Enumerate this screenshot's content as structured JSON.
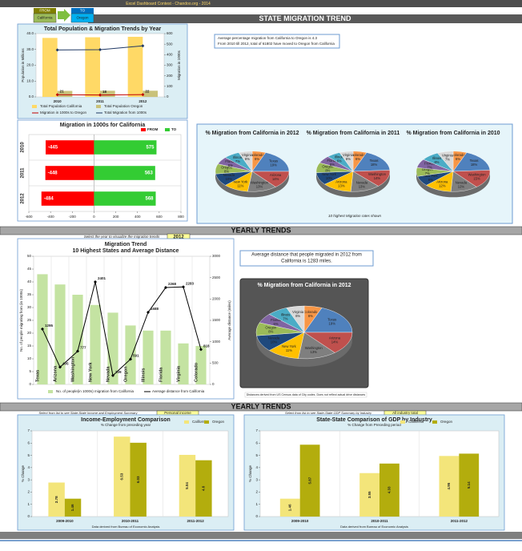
{
  "header": {
    "banner": "Excel Dashboard Contest - Chandoo.org - 2014",
    "from_label": "FROM",
    "from_value": "California",
    "to_label": "TO",
    "to_value": "Oregon",
    "title": "STATE MIGRATION TREND"
  },
  "notes": {
    "avg_percentage": "Average percentage migration from California to Oregon is 4.3",
    "total_moved": "From 2010 till 2012, total of 61802 have moved to Oregon from California",
    "pie_caption": "10 highest Migration rates shown",
    "year_prompt": "Select the year to visualize the migration trends",
    "year": "2012",
    "avg_distance_1": "Average distance that people migrated in 2012 from",
    "avg_distance_2": "California is 1283 miles.",
    "distance_source": "Distances derived from US Census data of City codes. Does not reflect actual drive distances",
    "income_prompt": "Select from list to see State-State Income and Employment Summary",
    "income_selection": "Personal income",
    "gdp_prompt": "Select from list to see State-State GDP Summary by Industry",
    "gdp_selection": "All industry total",
    "income_source": "Data derived from Bureau of Economic Analysis",
    "gdp_source": "Data derived from Bureau of Economic Analysis"
  },
  "sections": [
    "YEARLY TRENDS",
    "YEARLY TRENDS"
  ],
  "chart_data": [
    {
      "type": "combo",
      "title": "Total Population & Migration Trends by Year",
      "categories": [
        "2010",
        "2011",
        "2012"
      ],
      "ylabel": "Population in Millions",
      "y2label": "Migration in 1000s",
      "ylim": [
        0,
        40
      ],
      "yticks": [
        {
          "value": 0,
          "label": "0.0"
        },
        {
          "value": 10,
          "label": "10.0"
        },
        {
          "value": 20,
          "label": "20.0"
        },
        {
          "value": 30,
          "label": "30.0"
        },
        {
          "value": 40,
          "label": "40.0"
        }
      ],
      "y2lim": [
        0,
        600
      ],
      "y2ticks": [
        0,
        100,
        200,
        300,
        400,
        500,
        600
      ],
      "grid": false,
      "series": [
        {
          "name": "Total Population California",
          "kind": "bar",
          "color": "#ffd966",
          "values": [
            37.3,
            37.7,
            38.0
          ]
        },
        {
          "name": "Total Population Oregon",
          "kind": "bar",
          "color": "#c9c27a",
          "values": [
            3.8,
            3.9,
            3.9
          ]
        },
        {
          "name": "Migration in 1000s to Oregon",
          "kind": "line",
          "axis": "y2",
          "color": "#c00000",
          "values": [
            21,
            18,
            22
          ],
          "data_labels": true
        },
        {
          "name": "Total Migration from 1000s",
          "kind": "line",
          "axis": "y2",
          "color": "#1f3864",
          "values": [
            445,
            448,
            484
          ]
        }
      ]
    },
    {
      "type": "hbar",
      "title": "Migration in 1000s for California",
      "categories": [
        "2010",
        "2011",
        "2012"
      ],
      "xlim": [
        -600,
        800
      ],
      "xticks": [
        -600,
        -400,
        -200,
        0,
        200,
        400,
        600,
        800
      ],
      "series": [
        {
          "name": "FROM",
          "color": "#ff0000",
          "values": [
            -445,
            -448,
            -484
          ]
        },
        {
          "name": "TO",
          "color": "#33cc33",
          "values": [
            575,
            563,
            568
          ]
        }
      ]
    },
    {
      "type": "pie",
      "title": "% Migration from California in 2012",
      "categories": [
        "Colorado",
        "Texas",
        "Arizona",
        "Washington",
        "New York",
        "Nevada",
        "Oregon",
        "Florida",
        "Illinois",
        "Virginia"
      ],
      "values": [
        6,
        19,
        14,
        13,
        11,
        10,
        8,
        6,
        7,
        6
      ],
      "value_labels": [
        "6%",
        "19%",
        "14%",
        "13%",
        "11%",
        "10%",
        "8%",
        "6%",
        "7%",
        "6%"
      ],
      "colors": [
        "#f79646",
        "#4f81bd",
        "#c0504d",
        "#7f7f7f",
        "#ffc000",
        "#1f497d",
        "#9bbb59",
        "#8064a2",
        "#4bacc6",
        "#d9d9d9"
      ]
    },
    {
      "type": "pie",
      "title": "% Migration from California in 2011",
      "categories": [
        "Colorado",
        "Texas",
        "Washington",
        "Nevada",
        "Arizona",
        "New York",
        "Oregon",
        "Florida",
        "Illinois",
        "Virginia"
      ],
      "values": [
        6,
        18,
        14,
        13,
        13,
        10,
        8,
        6,
        6,
        6
      ],
      "value_labels": [
        "6%",
        "18%",
        "14%",
        "13%",
        "13%",
        "10%",
        "8%",
        "6%",
        "6%",
        "6%"
      ],
      "colors": [
        "#f79646",
        "#4f81bd",
        "#c0504d",
        "#7f7f7f",
        "#ffc000",
        "#1f497d",
        "#9bbb59",
        "#8064a2",
        "#4bacc6",
        "#d9d9d9"
      ]
    },
    {
      "type": "pie",
      "title": "% Migration from California in 2010",
      "categories": [
        "Colorado",
        "Texas",
        "Washington",
        "Nevada",
        "Arizona",
        "New York",
        "Oregon",
        "Florida",
        "Illinois",
        "Virginia"
      ],
      "values": [
        6,
        18,
        15,
        12,
        12,
        8,
        7,
        7,
        8,
        7
      ],
      "value_labels": [
        "6%",
        "18%",
        "15%",
        "12%",
        "12%",
        "8%",
        "7%",
        "7%",
        "8%",
        "7%"
      ],
      "colors": [
        "#f79646",
        "#4f81bd",
        "#c0504d",
        "#7f7f7f",
        "#ffc000",
        "#1f497d",
        "#9bbb59",
        "#8064a2",
        "#4bacc6",
        "#d9d9d9"
      ]
    },
    {
      "type": "combo",
      "title": "Migration Trend",
      "subtitle": "10 Highest States and Average Distance",
      "categories": [
        "Texas",
        "Arizona",
        "Washington",
        "New York",
        "Nevada",
        "Oregon",
        "Illinois",
        "Florida",
        "Virginia",
        "Colorado"
      ],
      "ylabel": "No. of people migrating from (in 1000s)",
      "y2label": "Average distance (miles)",
      "ylim": [
        0,
        50
      ],
      "yticks": [
        0,
        5,
        10,
        15,
        20,
        25,
        30,
        35,
        40,
        45,
        50
      ],
      "y2lim": [
        0,
        3000
      ],
      "y2ticks": [
        0,
        500,
        1000,
        1500,
        2000,
        2500,
        3000
      ],
      "grid": false,
      "series": [
        {
          "name": "No. of people(in 1000s) migration from California",
          "kind": "bar",
          "color": "#c4e3a2",
          "values": [
            43,
            39,
            35,
            31,
            28,
            23,
            21,
            21,
            16,
            15
          ]
        },
        {
          "name": "Average distance from California",
          "kind": "line",
          "axis": "y2",
          "color": "#000000",
          "values": [
            1295,
            405,
            777,
            2401,
            209,
            591,
            1688,
            2268,
            2283,
            818
          ],
          "data_labels": true
        }
      ]
    },
    {
      "type": "pie",
      "title": "% Migration from California in 2012",
      "categories": [
        "Colorado",
        "Texas",
        "Arizona",
        "Washington",
        "New York",
        "Nevada",
        "Oregon",
        "Florida",
        "Illinois",
        "Virginia"
      ],
      "values": [
        6,
        19,
        14,
        13,
        11,
        10,
        8,
        6,
        7,
        6
      ],
      "value_labels": [
        "6%",
        "19%",
        "14%",
        "13%",
        "11%",
        "10%",
        "8%",
        "6%",
        "7%",
        "6%"
      ],
      "colors": [
        "#f79646",
        "#4f81bd",
        "#c0504d",
        "#7f7f7f",
        "#ffc000",
        "#1f497d",
        "#9bbb59",
        "#8064a2",
        "#4bacc6",
        "#d9d9d9"
      ]
    },
    {
      "type": "bar",
      "title": "Income-Employment Comparison",
      "subtitle": "% Change from preceding year",
      "categories": [
        "2009-2010",
        "2010-2011",
        "2011-2012"
      ],
      "ylabel": "% Change",
      "ylim": [
        0,
        7
      ],
      "yticks": [
        0,
        1,
        2,
        3,
        4,
        5,
        6,
        7
      ],
      "grid": false,
      "series": [
        {
          "name": "California",
          "color": "#f3e57a",
          "values": [
            2.78,
            6.53,
            5.04
          ],
          "data_labels": true
        },
        {
          "name": "Oregon",
          "color": "#b3ad0d",
          "values": [
            1.46,
            6.03,
            4.6
          ],
          "data_labels": true
        }
      ]
    },
    {
      "type": "bar",
      "title": "State-State Comparison of GDP by Industry",
      "subtitle": "% Change from Preceding period",
      "categories": [
        "2009-2010",
        "2010-2011",
        "2011-2012"
      ],
      "ylabel": "% Change",
      "ylim": [
        0,
        7
      ],
      "yticks": [
        0,
        1,
        2,
        3,
        4,
        5,
        6,
        7
      ],
      "grid": false,
      "series": [
        {
          "name": "California",
          "color": "#f3e57a",
          "values": [
            1.46,
            3.55,
            4.95
          ],
          "data_labels": true
        },
        {
          "name": "Oregon",
          "color": "#b3ad0d",
          "values": [
            5.87,
            4.33,
            5.14
          ],
          "data_labels": true
        }
      ]
    }
  ]
}
